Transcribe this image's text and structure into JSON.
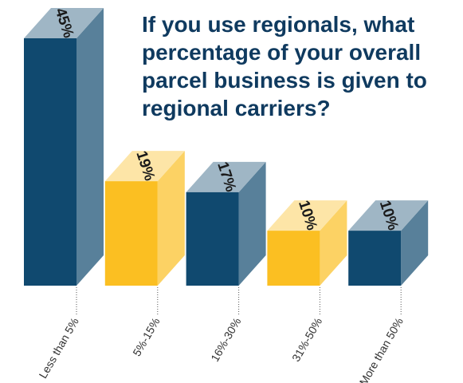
{
  "chart_data": {
    "type": "bar3d",
    "title": [
      "If you use regionals, what",
      "percentage of your overall",
      "parcel business is given to",
      "regional carriers?"
    ],
    "categories": [
      "Less than 5%",
      "5%-15%",
      "16%-30%",
      "31%-50%",
      "More than 50%"
    ],
    "values": [
      45,
      19,
      17,
      10,
      10
    ],
    "value_labels": [
      "45%",
      "19%",
      "17%",
      "10%",
      "10%"
    ],
    "colors": [
      "#10496f",
      "#fbbf22",
      "#10496f",
      "#fbbf22",
      "#10496f"
    ]
  }
}
